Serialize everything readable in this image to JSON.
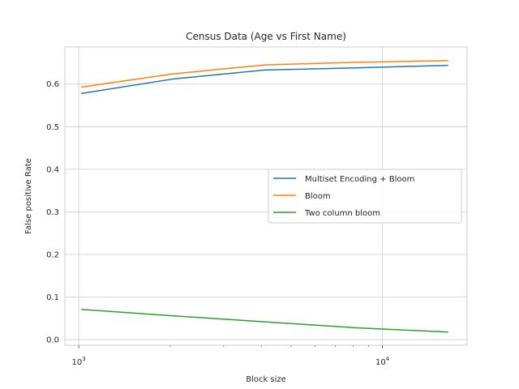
{
  "chart_data": {
    "type": "line",
    "title": "Census Data (Age vs First Name)",
    "xlabel": "Block size",
    "ylabel": "False positive Rate",
    "xscale": "log",
    "xlim": [
      900,
      19000
    ],
    "ylim": [
      -0.013,
      0.687
    ],
    "x": [
      1024,
      2048,
      4096,
      8192,
      16384
    ],
    "x_ticks": [
      {
        "value": 1000,
        "base": "10",
        "exp": "3"
      },
      {
        "value": 10000,
        "base": "10",
        "exp": "4"
      }
    ],
    "y_ticks": [
      {
        "value": 0.0,
        "label": "0.0"
      },
      {
        "value": 0.1,
        "label": "0.1"
      },
      {
        "value": 0.2,
        "label": "0.2"
      },
      {
        "value": 0.3,
        "label": "0.3"
      },
      {
        "value": 0.4,
        "label": "0.4"
      },
      {
        "value": 0.5,
        "label": "0.5"
      },
      {
        "value": 0.6,
        "label": "0.6"
      }
    ],
    "series": [
      {
        "name": "Multiset Encoding + Bloom",
        "color": "#1f77b4",
        "values": [
          0.578,
          0.612,
          0.633,
          0.638,
          0.644
        ]
      },
      {
        "name": "Bloom",
        "color": "#ff7f0e",
        "values": [
          0.593,
          0.624,
          0.645,
          0.651,
          0.655
        ]
      },
      {
        "name": "Two column bloom",
        "color": "#2ca02c",
        "values": [
          0.071,
          0.056,
          0.042,
          0.028,
          0.018
        ]
      }
    ],
    "grid": true,
    "legend_position": "center-right"
  }
}
